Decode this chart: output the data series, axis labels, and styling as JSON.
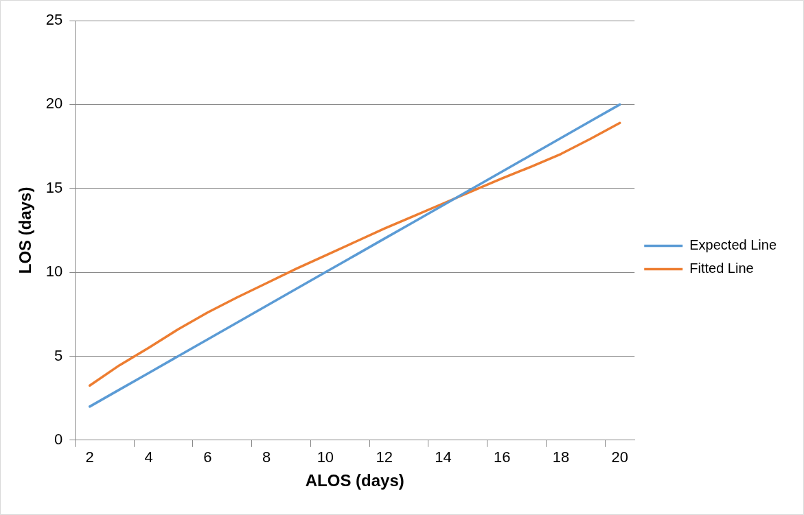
{
  "chart_data": {
    "type": "line",
    "xlabel": "ALOS (days)",
    "ylabel": "LOS (days)",
    "categories": [
      "2",
      null,
      "4",
      null,
      "6",
      null,
      "8",
      null,
      "10",
      null,
      "12",
      null,
      "14",
      null,
      "16",
      null,
      "18",
      null,
      "20"
    ],
    "series": [
      {
        "name": "Expected Line",
        "color": "#5b9bd5",
        "values": [
          2,
          3,
          4,
          5,
          6,
          7,
          8,
          9,
          10,
          11,
          12,
          13,
          14,
          15,
          16,
          17,
          18,
          19,
          20
        ]
      },
      {
        "name": "Fitted Line",
        "color": "#ed7d31",
        "values": [
          3.25,
          4.45,
          5.5,
          6.6,
          7.6,
          8.5,
          9.35,
          10.2,
          11.0,
          11.8,
          12.6,
          13.35,
          14.1,
          14.85,
          15.6,
          16.3,
          17.05,
          17.95,
          18.9
        ]
      }
    ],
    "ylim": [
      0,
      25
    ],
    "yticks": [
      0,
      5,
      10,
      15,
      20,
      25
    ],
    "grid": "y",
    "legend": "right",
    "marker": "none",
    "line_style": "solid"
  }
}
